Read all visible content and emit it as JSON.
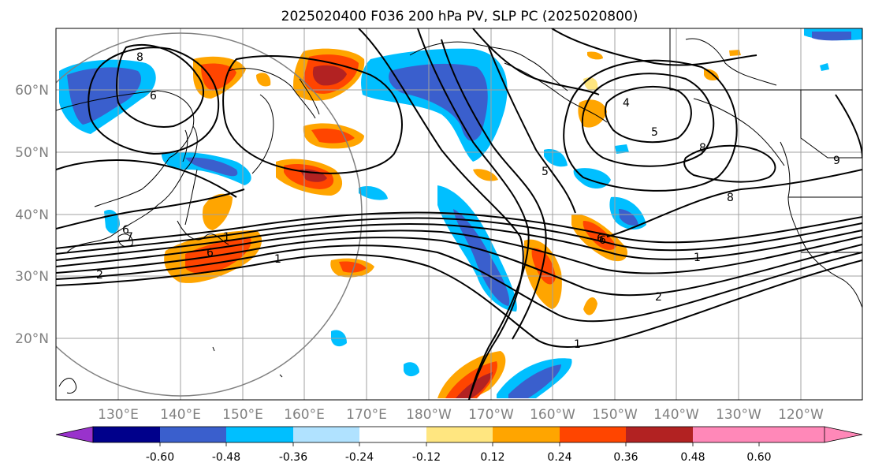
{
  "title": "2025020400 F036 200 hPa PV, SLP PC (2025020800)",
  "lon_labels": [
    "130°E",
    "140°E",
    "150°E",
    "160°E",
    "170°E",
    "180°W",
    "170°W",
    "160°W",
    "150°W",
    "140°W",
    "130°W",
    "120°W"
  ],
  "lat_labels": [
    "60°N",
    "50°N",
    "40°N",
    "30°N",
    "20°N"
  ],
  "colorbar": {
    "tick_labels": [
      "-0.60",
      "-0.48",
      "-0.36",
      "-0.24",
      "-0.12",
      "0.12",
      "0.24",
      "0.36",
      "0.48",
      "0.60"
    ],
    "colors": [
      "#9932cc",
      "#00008b",
      "#3a5fcd",
      "#00bfff",
      "#b0e2ff",
      "#ffffff",
      "#ffe680",
      "#ffa500",
      "#ff4500",
      "#b22222",
      "#ff88b8"
    ]
  },
  "contour_labels": [
    "8",
    "6",
    "6",
    "1",
    "2",
    "1",
    "7",
    "6",
    "5",
    "4",
    "6",
    "8",
    "9",
    "5",
    "2",
    "1",
    "1",
    "6",
    "8"
  ],
  "colors": {
    "land_outline": "#000000",
    "grid": "#a0a0a0",
    "circle": "#808080"
  }
}
